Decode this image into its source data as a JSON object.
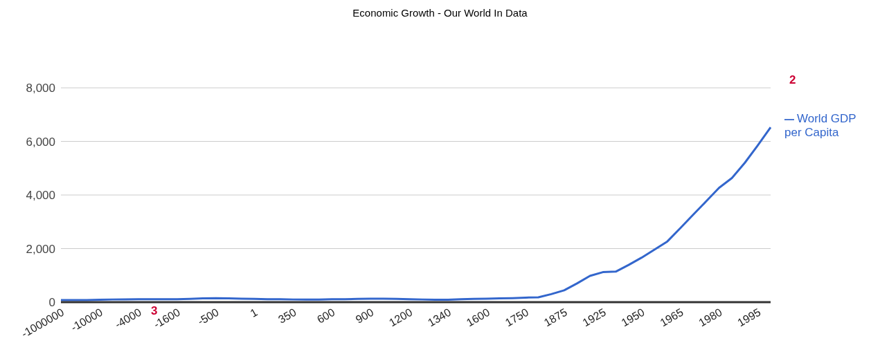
{
  "chart_data": {
    "type": "line",
    "title": "Economic Growth - Our World In Data",
    "categories": [
      "-1000000",
      null,
      null,
      "-10000",
      null,
      null,
      "-4000",
      null,
      null,
      "-1600",
      null,
      null,
      "-500",
      null,
      null,
      "1",
      null,
      null,
      "350",
      null,
      null,
      "600",
      null,
      null,
      "900",
      null,
      null,
      "1200",
      null,
      null,
      "1340",
      null,
      null,
      "1600",
      null,
      null,
      "1750",
      null,
      null,
      "1875",
      null,
      null,
      "1925",
      null,
      null,
      "1950",
      null,
      null,
      "1965",
      null,
      null,
      "1980",
      null,
      null,
      "1995",
      null
    ],
    "series": [
      {
        "name": "World GDP per Capita",
        "color": "#3366cc",
        "values": [
          80,
          80,
          80,
          90,
          100,
          105,
          110,
          110,
          110,
          110,
          120,
          140,
          150,
          140,
          130,
          120,
          110,
          110,
          100,
          100,
          100,
          110,
          110,
          120,
          130,
          130,
          120,
          110,
          100,
          90,
          90,
          110,
          120,
          130,
          140,
          150,
          170,
          182,
          300,
          443,
          700,
          982,
          1120,
          1139,
          1390,
          1660,
          1960,
          2267,
          2760,
          3265,
          3760,
          4266,
          4631,
          5200,
          5850,
          6523
        ]
      }
    ],
    "ylim": [
      0,
      8000
    ],
    "yticks": [
      {
        "value": 0,
        "label": "0"
      },
      {
        "value": 2000,
        "label": "2,000"
      },
      {
        "value": 4000,
        "label": "4,000"
      },
      {
        "value": 6000,
        "label": "6,000"
      },
      {
        "value": 8000,
        "label": "8,000"
      }
    ],
    "grid": "y",
    "legend": "right",
    "marker": "none",
    "line_style": "solid",
    "annotations": [
      "2",
      "3"
    ]
  }
}
